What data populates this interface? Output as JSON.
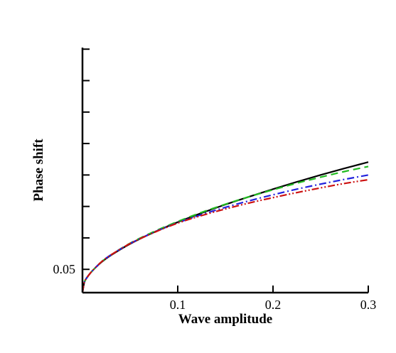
{
  "chart_data": {
    "type": "line",
    "title": "",
    "xlabel": "Wave amplitude",
    "ylabel": "Phase shift",
    "xlim": [
      0,
      0.3
    ],
    "ylim": [
      0.0426,
      0.1205
    ],
    "x_ticks": [
      0.1,
      0.2,
      0.3
    ],
    "x_tick_labels": [
      "0.1",
      "0.2",
      "0.3"
    ],
    "y_ticks": [
      0.05,
      0.06,
      0.07,
      0.08,
      0.09,
      0.1,
      0.11,
      0.12
    ],
    "y_tick_labels": [
      "0.05",
      "",
      "",
      "",
      "",
      "",
      "",
      ""
    ],
    "grid": false,
    "legend": "none",
    "series": [
      {
        "color": "#000000",
        "dash": "solid",
        "x": [
          0,
          0.002,
          0.005,
          0.01,
          0.02,
          0.03,
          0.05,
          0.075,
          0.1,
          0.125,
          0.15,
          0.175,
          0.2,
          0.225,
          0.25,
          0.275,
          0.3
        ],
        "y": [
          0.0426,
          0.0459,
          0.0475,
          0.0494,
          0.0523,
          0.0545,
          0.0581,
          0.0618,
          0.065,
          0.0679,
          0.0706,
          0.0731,
          0.0755,
          0.0778,
          0.08,
          0.0821,
          0.0841
        ]
      },
      {
        "color": "#22bb22",
        "dash": "dashed",
        "x": [
          0,
          0.002,
          0.005,
          0.01,
          0.02,
          0.03,
          0.05,
          0.075,
          0.1,
          0.125,
          0.15,
          0.175,
          0.2,
          0.225,
          0.25,
          0.275,
          0.3
        ],
        "y": [
          0.0426,
          0.0459,
          0.0475,
          0.0494,
          0.0524,
          0.0546,
          0.0583,
          0.062,
          0.0652,
          0.0681,
          0.0707,
          0.0731,
          0.0753,
          0.0774,
          0.0793,
          0.0811,
          0.0827
        ]
      },
      {
        "color": "#2222dd",
        "dash": "dash-dot",
        "x": [
          0,
          0.002,
          0.005,
          0.01,
          0.02,
          0.03,
          0.05,
          0.075,
          0.1,
          0.125,
          0.15,
          0.175,
          0.2,
          0.225,
          0.25,
          0.275,
          0.3
        ],
        "y": [
          0.0426,
          0.0459,
          0.0475,
          0.0494,
          0.0524,
          0.0546,
          0.0582,
          0.0618,
          0.0648,
          0.0674,
          0.0697,
          0.0718,
          0.0737,
          0.0755,
          0.0771,
          0.0786,
          0.08
        ]
      },
      {
        "color": "#cc1111",
        "dash": "dash-dot-dot",
        "x": [
          0,
          0.002,
          0.005,
          0.01,
          0.02,
          0.03,
          0.05,
          0.075,
          0.1,
          0.125,
          0.15,
          0.175,
          0.2,
          0.225,
          0.25,
          0.275,
          0.3
        ],
        "y": [
          0.0426,
          0.0459,
          0.0475,
          0.0494,
          0.0524,
          0.0546,
          0.0582,
          0.0617,
          0.0647,
          0.0671,
          0.0692,
          0.0711,
          0.0728,
          0.0744,
          0.0759,
          0.0773,
          0.0785
        ]
      }
    ]
  }
}
